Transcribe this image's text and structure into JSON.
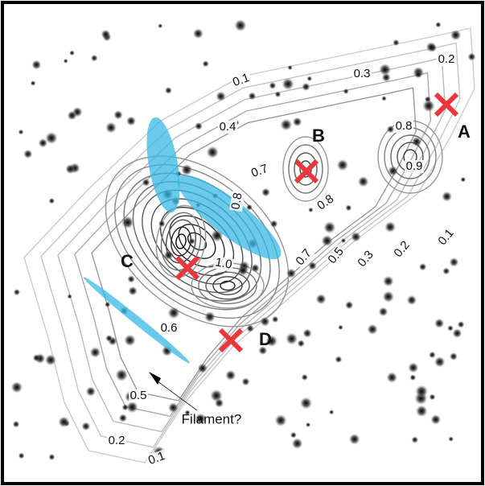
{
  "markers": [
    {
      "label": "A"
    },
    {
      "label": "B"
    },
    {
      "label": "C"
    },
    {
      "label": "D"
    }
  ],
  "contour_labels": [
    "0.1",
    "0.3",
    "0.2",
    "0.4",
    "0.8",
    "0.9",
    "0.7",
    "0.8",
    "0.8",
    "1.0",
    "0.7",
    "0.5",
    "0.3",
    "0.2",
    "0.1",
    "0.6",
    "0.5",
    "0.2",
    "0.1"
  ],
  "annotation": "Filament?"
}
